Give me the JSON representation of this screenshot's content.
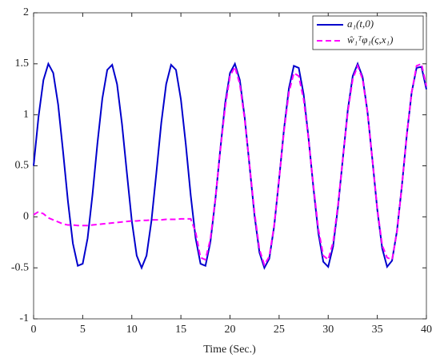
{
  "chart_data": {
    "type": "line",
    "xlabel": "Time (Sec.)",
    "x": [
      0,
      0.5,
      1,
      1.5,
      2,
      2.5,
      3,
      3.5,
      4,
      4.5,
      5,
      5.5,
      6,
      6.5,
      7,
      7.5,
      8,
      8.5,
      9,
      9.5,
      10,
      10.5,
      11,
      11.5,
      12,
      12.5,
      13,
      13.5,
      14,
      14.5,
      15,
      15.5,
      16,
      16.5,
      17,
      17.5,
      18,
      18.5,
      19,
      19.5,
      20,
      20.5,
      21,
      21.5,
      22,
      22.5,
      23,
      23.5,
      24,
      24.5,
      25,
      25.5,
      26,
      26.5,
      27,
      27.5,
      28,
      28.5,
      29,
      29.5,
      30,
      30.5,
      31,
      31.5,
      32,
      32.5,
      33,
      33.5,
      34,
      34.5,
      35,
      35.5,
      36,
      36.5,
      37,
      37.5,
      38,
      38.5,
      39,
      39.5,
      40
    ],
    "series": [
      {
        "name": "a₁(t,0)",
        "color": "#0000cc",
        "dash": false,
        "values": [
          0.5,
          0.98,
          1.34,
          1.5,
          1.41,
          1.1,
          0.64,
          0.15,
          -0.26,
          -0.48,
          -0.46,
          -0.21,
          0.22,
          0.72,
          1.16,
          1.44,
          1.49,
          1.3,
          0.91,
          0.43,
          -0.04,
          -0.38,
          -0.5,
          -0.38,
          -0.04,
          0.43,
          0.92,
          1.3,
          1.49,
          1.44,
          1.15,
          0.71,
          0.21,
          -0.21,
          -0.46,
          -0.48,
          -0.25,
          0.16,
          0.65,
          1.11,
          1.41,
          1.5,
          1.34,
          0.97,
          0.49,
          0.01,
          -0.35,
          -0.5,
          -0.41,
          -0.09,
          0.37,
          0.86,
          1.26,
          1.48,
          1.46,
          1.2,
          0.77,
          0.28,
          -0.16,
          -0.44,
          -0.49,
          -0.29,
          0.1,
          0.58,
          1.05,
          1.38,
          1.5,
          1.37,
          1.03,
          0.56,
          0.07,
          -0.31,
          -0.49,
          -0.43,
          -0.14,
          0.3,
          0.8,
          1.22,
          1.46,
          1.47,
          1.25
        ]
      },
      {
        "name": "ŵ₁ᵀφ₁(ς,x₁)",
        "color": "#ff00ff",
        "dash": true,
        "values": [
          0.02,
          0.05,
          0.03,
          -0.01,
          -0.03,
          -0.05,
          -0.07,
          -0.08,
          -0.08,
          -0.085,
          -0.085,
          -0.085,
          -0.08,
          -0.075,
          -0.07,
          -0.065,
          -0.06,
          -0.055,
          -0.05,
          -0.045,
          -0.04,
          -0.04,
          -0.035,
          -0.035,
          -0.03,
          -0.03,
          -0.03,
          -0.025,
          -0.025,
          -0.025,
          -0.02,
          -0.02,
          -0.02,
          -0.15,
          -0.4,
          -0.42,
          -0.22,
          0.17,
          0.64,
          1.07,
          1.38,
          1.47,
          1.3,
          0.95,
          0.5,
          0.04,
          -0.32,
          -0.47,
          -0.39,
          -0.08,
          0.37,
          0.84,
          1.22,
          1.41,
          1.38,
          1.15,
          0.76,
          0.3,
          -0.12,
          -0.38,
          -0.42,
          -0.25,
          0.12,
          0.58,
          1.03,
          1.35,
          1.48,
          1.35,
          1.02,
          0.56,
          0.08,
          -0.28,
          -0.4,
          -0.42,
          -0.15,
          0.3,
          0.8,
          1.22,
          1.48,
          1.5,
          1.28
        ]
      }
    ],
    "xlim": [
      0,
      40
    ],
    "xticks": [
      0,
      5,
      10,
      15,
      20,
      25,
      30,
      35,
      40
    ],
    "ylim": [
      -1,
      2
    ],
    "yticks": [
      -1,
      -0.5,
      0,
      0.5,
      1,
      1.5,
      2
    ],
    "legend": "upper right"
  }
}
